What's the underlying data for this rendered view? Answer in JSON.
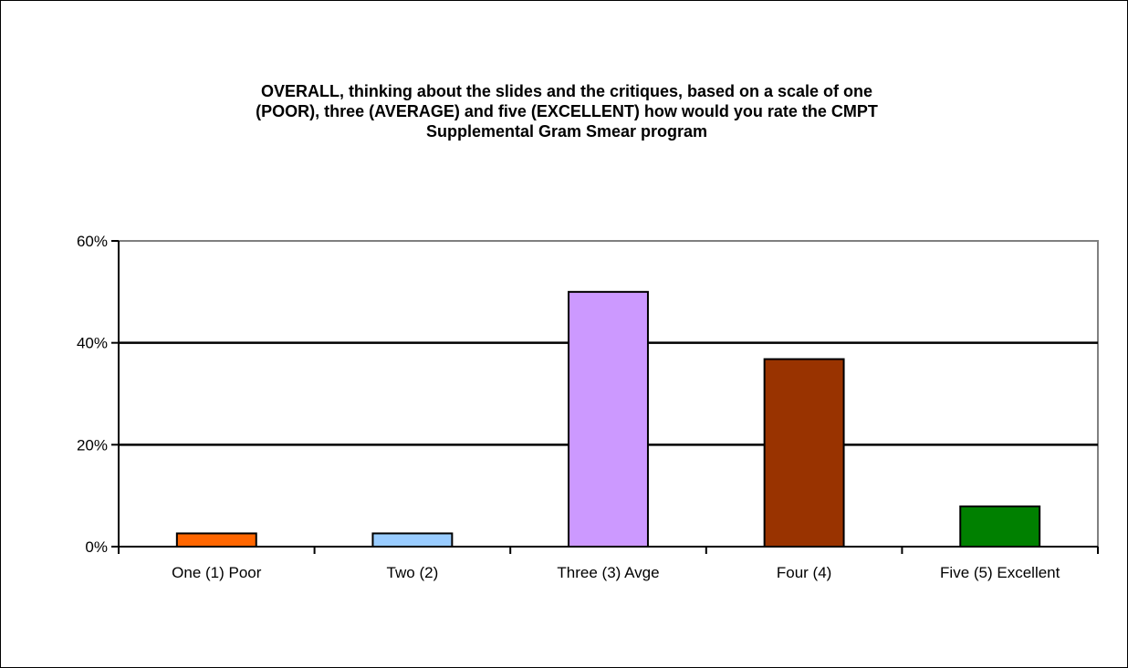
{
  "chart_data": {
    "type": "bar",
    "title_lines": [
      "OVERALL,  thinking about the slides and the critiques, based on a scale of one",
      "(POOR), three (AVERAGE)  and five (EXCELLENT)   how would you rate the CMPT",
      "Supplemental Gram Smear program"
    ],
    "categories": [
      "One (1) Poor",
      "Two (2)",
      "Three (3) Avge",
      "Four (4)",
      "Five (5) Excellent"
    ],
    "values": [
      2.6,
      2.6,
      50,
      36.8,
      7.9
    ],
    "colors": [
      "#FF6600",
      "#99CCFF",
      "#CC99FF",
      "#993300",
      "#008000"
    ],
    "ylim": [
      0,
      60
    ],
    "yticks": [
      0,
      20,
      40,
      60
    ],
    "ytick_labels": [
      "0%",
      "20%",
      "40%",
      "60%"
    ],
    "xlabel": "",
    "ylabel": "",
    "grid": true,
    "legend": "none"
  }
}
